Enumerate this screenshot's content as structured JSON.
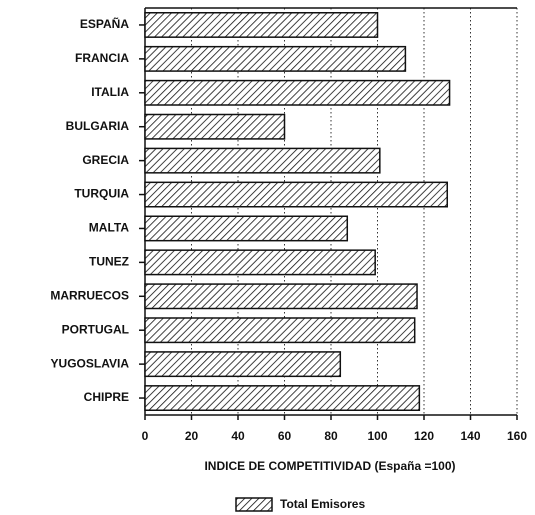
{
  "chart_data": {
    "type": "bar",
    "orientation": "horizontal",
    "x_label": "INDICE DE COMPETITIVIDAD (España =100)",
    "categories": [
      "ESPAÑA",
      "FRANCIA",
      "ITALIA",
      "BULGARIA",
      "GRECIA",
      "TURQUIA",
      "MALTA",
      "TUNEZ",
      "MARRUECOS",
      "PORTUGAL",
      "YUGOSLAVIA",
      "CHIPRE"
    ],
    "series": [
      {
        "name": "Total Emisores",
        "color": "#111111",
        "values": [
          100,
          112,
          131,
          60,
          101,
          130,
          87,
          99,
          117,
          116,
          84,
          118
        ]
      }
    ],
    "xlim": [
      0,
      160
    ],
    "xticks": [
      0,
      20,
      40,
      60,
      80,
      100,
      120,
      140,
      160
    ],
    "grid": true,
    "legend": "bottom"
  }
}
